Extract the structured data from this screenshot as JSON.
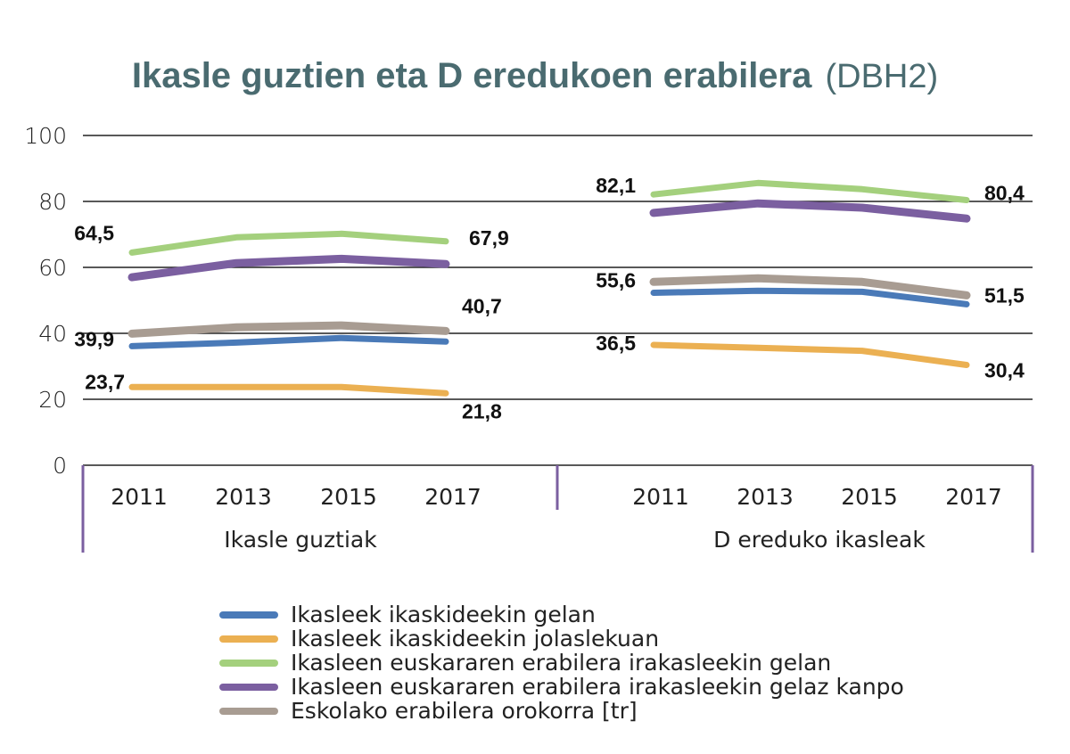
{
  "chart_data": {
    "type": "line",
    "title": "Ikasle guztien eta D eredukoen erabilera",
    "title_suffix": "(DBH2)",
    "ylim": [
      0,
      100
    ],
    "yticks": [
      0,
      20,
      40,
      60,
      80,
      100
    ],
    "grid": true,
    "xlabel": "",
    "ylabel": "",
    "legend_position": "bottom",
    "groups": [
      {
        "label": "Ikasle guztiak",
        "categories": [
          "2011",
          "2013",
          "2015",
          "2017"
        ],
        "series": [
          {
            "name": "Ikasleek ikaskideekin gelan",
            "color": "#4a7ab8",
            "values": [
              36.1,
              37.2,
              38.6,
              37.5
            ]
          },
          {
            "name": "Ikasleek ikaskideekin jolaslekuan",
            "color": "#ebb052",
            "values": [
              23.7,
              23.7,
              23.7,
              21.8
            ]
          },
          {
            "name": "Ikasleen euskararen erabilera irakasleekin gelan",
            "color": "#a4d07d",
            "values": [
              64.5,
              69.1,
              70.2,
              67.9
            ]
          },
          {
            "name": "Ikasleen euskararen erabilera irakasleekin gelaz kanpo",
            "color": "#7b5fa0",
            "values": [
              57.0,
              61.3,
              62.6,
              61.0
            ]
          },
          {
            "name": "Eskolako erabilera orokorra [tr]",
            "color": "#a89c92",
            "values": [
              39.9,
              41.8,
              42.4,
              40.7
            ]
          }
        ],
        "data_labels": [
          {
            "series": 2,
            "index": 0,
            "text": "64,5"
          },
          {
            "series": 2,
            "index": 3,
            "text": "67,9"
          },
          {
            "series": 4,
            "index": 0,
            "text": "39,9"
          },
          {
            "series": 4,
            "index": 3,
            "text": "40,7"
          },
          {
            "series": 1,
            "index": 0,
            "text": "23,7"
          },
          {
            "series": 1,
            "index": 3,
            "text": "21,8"
          }
        ]
      },
      {
        "label": "D ereduko ikasleak",
        "categories": [
          "2011",
          "2013",
          "2015",
          "2017"
        ],
        "series": [
          {
            "name": "Ikasleek ikaskideekin gelan",
            "color": "#4a7ab8",
            "values": [
              52.3,
              52.9,
              52.6,
              48.8
            ]
          },
          {
            "name": "Ikasleek ikaskideekin jolaslekuan",
            "color": "#ebb052",
            "values": [
              36.5,
              35.6,
              34.7,
              30.4
            ]
          },
          {
            "name": "Ikasleen euskararen erabilera irakasleekin gelan",
            "color": "#a4d07d",
            "values": [
              82.1,
              85.6,
              83.7,
              80.4
            ]
          },
          {
            "name": "Ikasleen euskararen erabilera irakasleekin gelaz kanpo",
            "color": "#7b5fa0",
            "values": [
              76.5,
              79.4,
              78.1,
              74.8
            ]
          },
          {
            "name": "Eskolako erabilera orokorra [tr]",
            "color": "#a89c92",
            "values": [
              55.6,
              56.7,
              55.6,
              51.5
            ]
          }
        ],
        "data_labels": [
          {
            "series": 2,
            "index": 0,
            "text": "82,1"
          },
          {
            "series": 2,
            "index": 3,
            "text": "80,4"
          },
          {
            "series": 4,
            "index": 0,
            "text": "55,6"
          },
          {
            "series": 4,
            "index": 3,
            "text": "51,5"
          },
          {
            "series": 1,
            "index": 0,
            "text": "36,5"
          },
          {
            "series": 1,
            "index": 3,
            "text": "30,4"
          }
        ]
      }
    ],
    "legend": [
      {
        "label": "Ikasleek ikaskideekin gelan",
        "color": "#4a7ab8"
      },
      {
        "label": "Ikasleek ikaskideekin jolaslekuan",
        "color": "#ebb052"
      },
      {
        "label": "Ikasleen euskararen erabilera irakasleekin gelan",
        "color": "#a4d07d"
      },
      {
        "label": "Ikasleen euskararen erabilera irakasleekin gelaz kanpo",
        "color": "#7b5fa0"
      },
      {
        "label": "Eskolako erabilera orokorra [tr]",
        "color": "#a89c92"
      }
    ]
  },
  "colors": {
    "title": "#4a6b70",
    "gridline": "#222222",
    "separator": "#7b5fa0"
  }
}
